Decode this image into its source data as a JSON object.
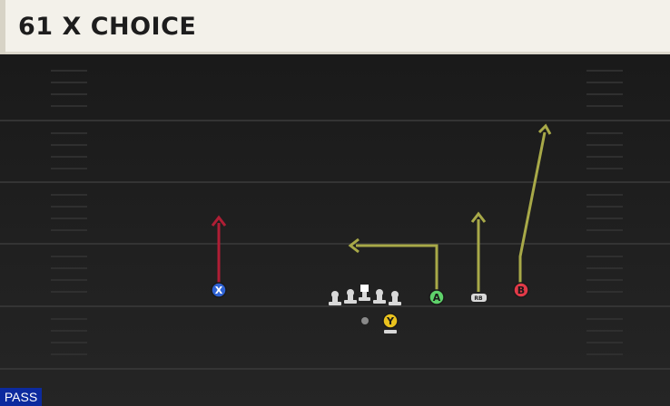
{
  "play": {
    "title": "61 X CHOICE",
    "type_badge": "PASS"
  },
  "players": {
    "x": {
      "label": "X",
      "color": "#2f63d4"
    },
    "a": {
      "label": "A",
      "color": "#5ed16a"
    },
    "b": {
      "label": "B",
      "color": "#e23a48"
    },
    "y": {
      "label": "Y",
      "color": "#e9c21e"
    },
    "rb": {
      "label": "RB",
      "color": "#d9d9d9"
    }
  },
  "colors": {
    "route_primary": "#a8a948",
    "route_alt": "#b01e35",
    "field_bg": "#1c1c1c",
    "yard_line": "#333333"
  }
}
